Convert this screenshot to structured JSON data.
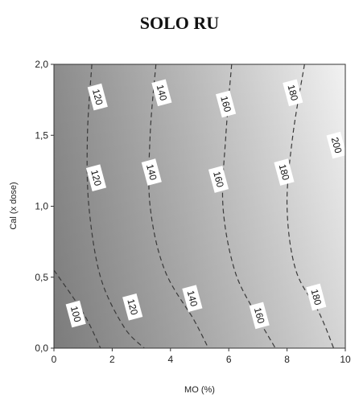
{
  "chart_data": {
    "type": "contour",
    "title": "SOLO RU",
    "xlabel": "MO (%)",
    "ylabel": "Cal (x dose)",
    "xlim": [
      0,
      10
    ],
    "ylim": [
      0,
      2
    ],
    "x_ticks": [
      "0",
      "2",
      "4",
      "6",
      "8",
      "10"
    ],
    "y_ticks": [
      "0,0",
      "0,5",
      "1,0",
      "1,5",
      "2,0"
    ],
    "grid": false,
    "fill": "grayscale gradient, dark at low MO to light at high MO",
    "contours": [
      {
        "level": "100",
        "points": [
          [
            0,
            0.55
          ],
          [
            1.0,
            0.25
          ],
          [
            1.6,
            0.0
          ]
        ]
      },
      {
        "level": "120",
        "points": [
          [
            1.3,
            2.0
          ],
          [
            1.15,
            1.5
          ],
          [
            1.2,
            1.0
          ],
          [
            1.6,
            0.5
          ],
          [
            2.4,
            0.15
          ],
          [
            3.1,
            0.0
          ]
        ]
      },
      {
        "level": "140",
        "points": [
          [
            3.5,
            2.0
          ],
          [
            3.3,
            1.5
          ],
          [
            3.3,
            1.0
          ],
          [
            3.8,
            0.55
          ],
          [
            4.8,
            0.2
          ],
          [
            5.3,
            0.0
          ]
        ]
      },
      {
        "level": "160",
        "points": [
          [
            6.1,
            2.0
          ],
          [
            5.9,
            1.5
          ],
          [
            5.8,
            1.0
          ],
          [
            6.2,
            0.55
          ],
          [
            6.9,
            0.25
          ],
          [
            7.6,
            0.0
          ]
        ]
      },
      {
        "level": "180",
        "points": [
          [
            8.6,
            2.0
          ],
          [
            8.2,
            1.5
          ],
          [
            8.0,
            1.0
          ],
          [
            8.3,
            0.55
          ],
          [
            9.1,
            0.25
          ],
          [
            9.6,
            0.0
          ]
        ]
      }
    ],
    "contour_labels": [
      {
        "text": "120",
        "x": 1.5,
        "y": 1.77
      },
      {
        "text": "140",
        "x": 3.7,
        "y": 1.8
      },
      {
        "text": "160",
        "x": 5.9,
        "y": 1.72
      },
      {
        "text": "180",
        "x": 8.2,
        "y": 1.8
      },
      {
        "text": "200",
        "x": 9.7,
        "y": 1.43
      },
      {
        "text": "120",
        "x": 1.45,
        "y": 1.2
      },
      {
        "text": "140",
        "x": 3.35,
        "y": 1.24
      },
      {
        "text": "160",
        "x": 5.65,
        "y": 1.19
      },
      {
        "text": "180",
        "x": 7.9,
        "y": 1.24
      },
      {
        "text": "100",
        "x": 0.75,
        "y": 0.24
      },
      {
        "text": "120",
        "x": 2.7,
        "y": 0.29
      },
      {
        "text": "140",
        "x": 4.75,
        "y": 0.35
      },
      {
        "text": "160",
        "x": 7.05,
        "y": 0.23
      },
      {
        "text": "180",
        "x": 9.0,
        "y": 0.36
      }
    ]
  }
}
